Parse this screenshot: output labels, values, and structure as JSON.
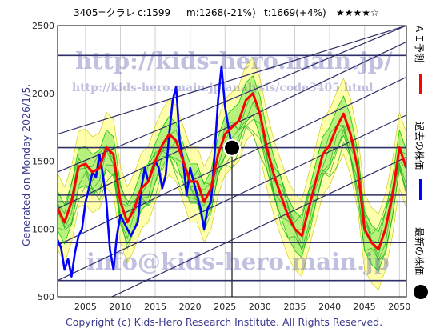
{
  "header": {
    "ticker": "3405=クラレ",
    "current": "c:1599",
    "mean": "m:1268(-21%)",
    "target": "t:1669(+4%)",
    "rating": "★★★★☆"
  },
  "watermarks": {
    "url_main": "http://kids-hero.main.jp/",
    "url_page": "http://kids-hero.main.jp/analysis/code3405.html",
    "email": "info@kids-hero.main.jp"
  },
  "side_legend": {
    "ai_label": "ＡＩ予測",
    "past_label": "過去の株価",
    "latest_label": "最新の株価"
  },
  "generated_label": "Generated on Monday 2026/1/5.",
  "copyright": "Copyright (c) Kids-Hero Research Institute. All Rights Reserved.",
  "colors": {
    "ai_line": "#ff0000",
    "past_line": "#0000ff",
    "band_lines": "#2e2e66",
    "fill_green": "#00cc00",
    "fill_yellow": "#ffff66",
    "latest_marker": "#000000"
  },
  "chart_data": {
    "type": "line",
    "xlim": [
      2001,
      2051
    ],
    "ylim": [
      500,
      2500
    ],
    "x_ticks": [
      2005,
      2010,
      2015,
      2020,
      2025,
      2030,
      2035,
      2040,
      2045,
      2050
    ],
    "y_ticks": [
      500,
      1000,
      1500,
      2000,
      2500
    ],
    "horizontal_levels": [
      620,
      900,
      1200,
      1250,
      1600,
      2280
    ],
    "diagonal_channels": [
      {
        "start": [
          2001,
          310
        ],
        "end": [
          2051,
          1530
        ]
      },
      {
        "start": [
          2001,
          620
        ],
        "end": [
          2051,
          1840
        ]
      },
      {
        "start": [
          2001,
          880
        ],
        "end": [
          2051,
          2120
        ]
      },
      {
        "start": [
          2001,
          1150
        ],
        "end": [
          2051,
          2380
        ]
      },
      {
        "start": [
          2001,
          1420
        ],
        "end": [
          2051,
          2500
        ]
      },
      {
        "start": [
          2001,
          1700
        ],
        "end": [
          2051,
          2500
        ]
      }
    ],
    "latest_point": {
      "x": 2026.0,
      "y": 1599
    },
    "series": [
      {
        "name": "過去の株価",
        "x": [
          2001.0,
          2001.5,
          2002.0,
          2002.5,
          2003.0,
          2003.5,
          2004.0,
          2004.5,
          2005.0,
          2005.5,
          2006.0,
          2006.5,
          2007.0,
          2007.5,
          2008.0,
          2008.5,
          2009.0,
          2009.5,
          2010.0,
          2010.5,
          2011.0,
          2011.5,
          2012.0,
          2012.5,
          2013.0,
          2013.5,
          2014.0,
          2014.5,
          2015.0,
          2015.5,
          2016.0,
          2016.5,
          2017.0,
          2017.5,
          2018.0,
          2018.5,
          2019.0,
          2019.5,
          2020.0,
          2020.5,
          2021.0,
          2021.5,
          2022.0,
          2022.5,
          2023.0,
          2023.5,
          2024.0,
          2024.5,
          2025.0,
          2025.5,
          2026.0
        ],
        "values": [
          920,
          860,
          700,
          780,
          650,
          830,
          950,
          1000,
          1200,
          1300,
          1420,
          1380,
          1550,
          1400,
          1200,
          850,
          700,
          950,
          1100,
          1050,
          1000,
          950,
          1000,
          1050,
          1300,
          1450,
          1350,
          1420,
          1500,
          1450,
          1300,
          1400,
          1700,
          1950,
          2050,
          1650,
          1500,
          1250,
          1450,
          1350,
          1250,
          1150,
          1000,
          1150,
          1200,
          1550,
          1950,
          2200,
          1900,
          1750,
          1599
        ]
      },
      {
        "name": "ＡＩ予測",
        "x": [
          2001.0,
          2002.0,
          2003.0,
          2004.0,
          2005.0,
          2006.0,
          2007.0,
          2008.0,
          2009.0,
          2010.0,
          2011.0,
          2012.0,
          2013.0,
          2014.0,
          2015.0,
          2016.0,
          2017.0,
          2018.0,
          2019.0,
          2020.0,
          2021.0,
          2022.0,
          2023.0,
          2024.0,
          2025.0,
          2026.0,
          2027.0,
          2028.0,
          2029.0,
          2030.0,
          2031.0,
          2032.0,
          2033.0,
          2034.0,
          2035.0,
          2036.0,
          2037.0,
          2038.0,
          2039.0,
          2040.0,
          2041.0,
          2042.0,
          2043.0,
          2044.0,
          2045.0,
          2046.0,
          2047.0,
          2048.0,
          2049.0,
          2050.0,
          2051.0
        ],
        "values": [
          1150,
          1050,
          1200,
          1460,
          1480,
          1420,
          1450,
          1600,
          1550,
          1200,
          1050,
          1150,
          1300,
          1350,
          1500,
          1620,
          1700,
          1650,
          1500,
          1350,
          1350,
          1200,
          1300,
          1550,
          1700,
          1750,
          1800,
          1950,
          2000,
          1850,
          1600,
          1400,
          1250,
          1100,
          1000,
          950,
          1150,
          1350,
          1550,
          1620,
          1750,
          1850,
          1700,
          1450,
          1000,
          900,
          850,
          1000,
          1250,
          1600,
          1450
        ]
      }
    ]
  }
}
